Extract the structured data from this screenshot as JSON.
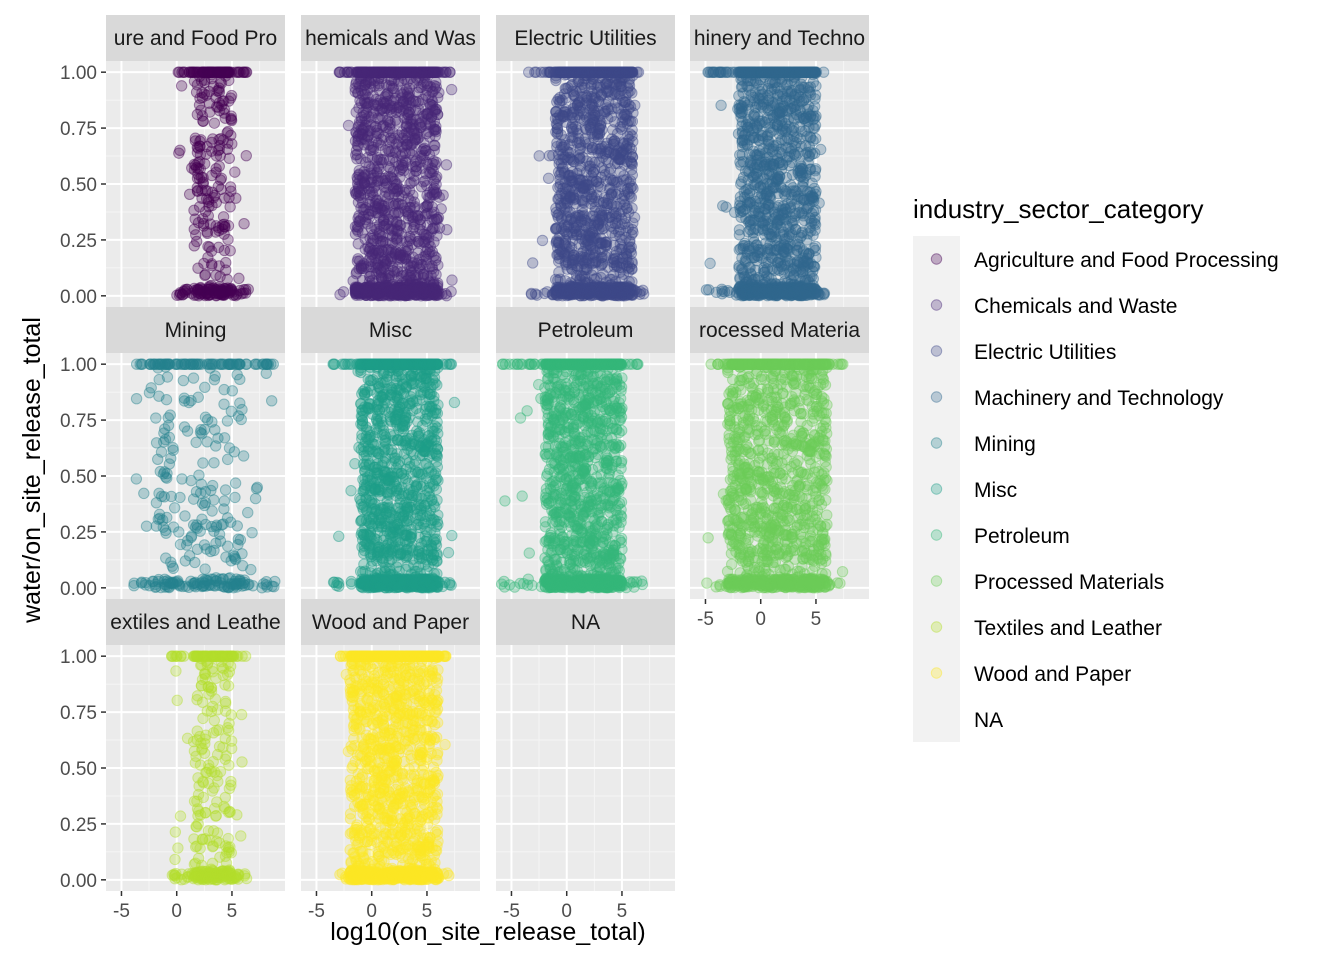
{
  "chart_data": {
    "type": "scatter",
    "xlabel": "log10(on_site_release_total)",
    "ylabel": "water/on_site_release_total",
    "xlim": [
      -6.4,
      9.8
    ],
    "ylim": [
      -0.05,
      1.05
    ],
    "x_ticks": [
      -5,
      0,
      5
    ],
    "x_tick_labels": [
      "-5",
      "0",
      "5"
    ],
    "y_ticks": [
      0,
      0.25,
      0.5,
      0.75,
      1
    ],
    "y_tick_labels": [
      "0.00",
      "0.25",
      "0.50",
      "0.75",
      "1.00"
    ],
    "legend": {
      "title": "industry_sector_category",
      "placement": "right",
      "entries": [
        {
          "label": "Agriculture and Food Processing",
          "color": "#440154"
        },
        {
          "label": "Chemicals and Waste",
          "color": "#482878"
        },
        {
          "label": "Electric Utilities",
          "color": "#3E4A89"
        },
        {
          "label": "Machinery and Technology",
          "color": "#31688E"
        },
        {
          "label": "Mining",
          "color": "#26828E"
        },
        {
          "label": "Misc",
          "color": "#1F9E89"
        },
        {
          "label": "Petroleum",
          "color": "#35B779"
        },
        {
          "label": "Processed Materials",
          "color": "#6DCD59"
        },
        {
          "label": "Textiles and Leather",
          "color": "#B4DE2C"
        },
        {
          "label": "Wood and Paper",
          "color": "#FDE725"
        },
        {
          "label": "NA",
          "color": null
        }
      ]
    },
    "facets": [
      {
        "strip": "ure and Food Pro",
        "category": "Agriculture and Food Processing",
        "color": "#440154",
        "x_range": [
          0,
          6.5
        ],
        "dense_range": [
          1.5,
          5
        ]
      },
      {
        "strip": "hemicals and Was",
        "category": "Chemicals and Waste",
        "color": "#482878",
        "x_range": [
          -3,
          7.5
        ],
        "dense_range": [
          -1.5,
          6
        ]
      },
      {
        "strip": "Electric Utilities",
        "category": "Electric Utilities",
        "color": "#3E4A89",
        "x_range": [
          -3.5,
          7
        ],
        "dense_range": [
          -1,
          6
        ]
      },
      {
        "strip": "hinery and Techno",
        "category": "Machinery and Technology",
        "color": "#31688E",
        "x_range": [
          -5,
          6
        ],
        "dense_range": [
          -2,
          5
        ]
      },
      {
        "strip": "Mining",
        "category": "Mining",
        "color": "#26828E",
        "x_range": [
          -4,
          9
        ],
        "dense_range": [
          -2,
          6
        ]
      },
      {
        "strip": "Misc",
        "category": "Misc",
        "color": "#1F9E89",
        "x_range": [
          -3.5,
          7.5
        ],
        "dense_range": [
          -1,
          6
        ]
      },
      {
        "strip": "Petroleum",
        "category": "Petroleum",
        "color": "#35B779",
        "x_range": [
          -6,
          7
        ],
        "dense_range": [
          -2,
          5
        ]
      },
      {
        "strip": "rocessed Materia",
        "category": "Processed Materials",
        "color": "#6DCD59",
        "x_range": [
          -5,
          7.5
        ],
        "dense_range": [
          -3,
          6
        ]
      },
      {
        "strip": "extiles and Leathe",
        "category": "Textiles and Leather",
        "color": "#B4DE2C",
        "x_range": [
          -0.5,
          6.5
        ],
        "dense_range": [
          1.5,
          5
        ]
      },
      {
        "strip": "Wood and Paper",
        "category": "Wood and Paper",
        "color": "#FDE725",
        "x_range": [
          -3,
          7
        ],
        "dense_range": [
          -2,
          6
        ]
      },
      {
        "strip": "NA",
        "category": "NA",
        "color": null,
        "x_range": null,
        "dense_range": null
      }
    ],
    "point_alpha": 0.3,
    "grid": true
  }
}
